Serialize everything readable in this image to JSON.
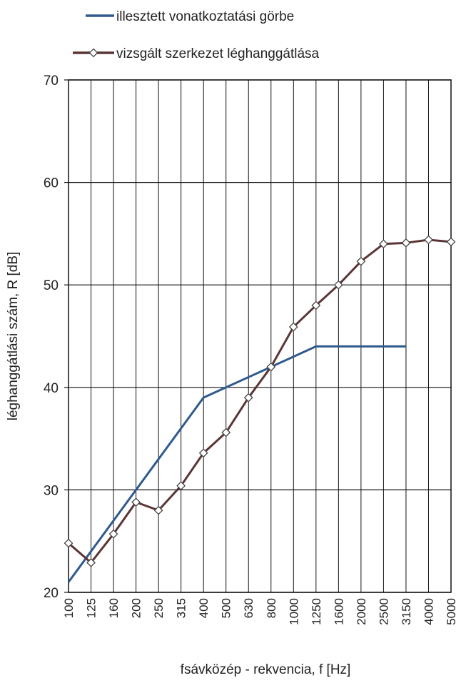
{
  "chart_data": {
    "type": "line",
    "title": "",
    "xlabel": "fsávközép - rekvencia, f [Hz]",
    "ylabel": "léghanggátlási szám, R [dB]",
    "categories": [
      "100",
      "125",
      "160",
      "200",
      "250",
      "315",
      "400",
      "500",
      "630",
      "800",
      "1000",
      "1250",
      "1600",
      "2000",
      "2500",
      "3150",
      "4000",
      "5000"
    ],
    "ylim": [
      20,
      70
    ],
    "yticks": [
      20,
      30,
      40,
      50,
      60,
      70
    ],
    "grid": true,
    "legend_position": "top",
    "series": [
      {
        "name": "illesztett vonatkoztatási görbe",
        "color": "#2f5a8e",
        "marker": "none",
        "values": [
          21,
          24,
          27,
          30,
          33,
          36,
          39,
          40,
          41,
          42,
          43,
          44,
          44,
          44,
          44,
          44,
          null,
          null
        ]
      },
      {
        "name": "vizsgált szerkezet léghanggátlása",
        "color": "#5b3535",
        "marker": "diamond",
        "values": [
          24.8,
          22.9,
          25.7,
          28.8,
          28.0,
          30.4,
          33.6,
          35.6,
          39.0,
          42.0,
          45.9,
          48.0,
          50.0,
          52.3,
          54.0,
          54.1,
          54.4,
          54.2
        ]
      }
    ]
  }
}
